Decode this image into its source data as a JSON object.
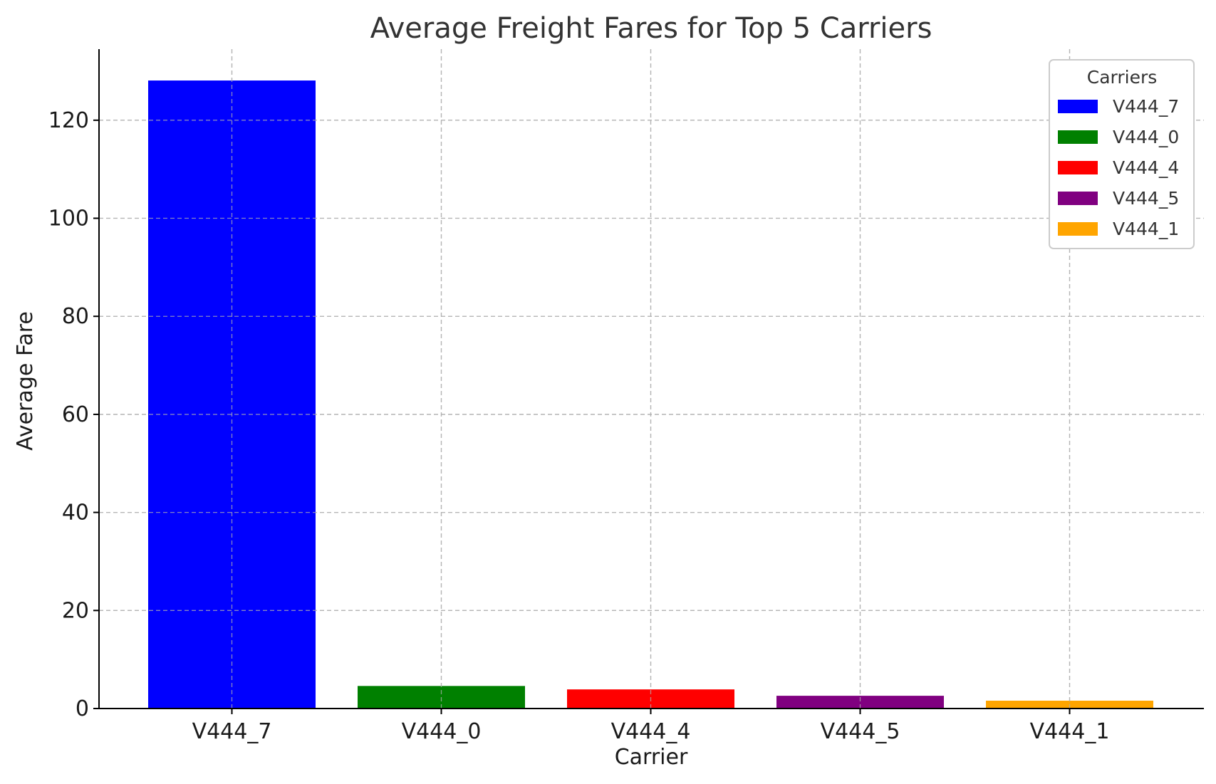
{
  "chart_data": {
    "type": "bar",
    "title": "Average Freight Fares for Top 5 Carriers",
    "xlabel": "Carrier",
    "ylabel": "Average Fare",
    "categories": [
      "V444_7",
      "V444_0",
      "V444_4",
      "V444_5",
      "V444_1"
    ],
    "values": [
      128.1,
      4.6,
      3.9,
      2.6,
      1.6
    ],
    "colors": [
      "#0000ff",
      "#008000",
      "#ff0000",
      "#800080",
      "#ffa500"
    ],
    "ylim": [
      0,
      134.5
    ],
    "yticks": [
      0,
      20,
      40,
      60,
      80,
      100,
      120
    ],
    "grid": true,
    "legend": {
      "title": "Carriers",
      "placement": "top-right",
      "entries": [
        "V444_7",
        "V444_0",
        "V444_4",
        "V444_5",
        "V444_1"
      ]
    }
  }
}
